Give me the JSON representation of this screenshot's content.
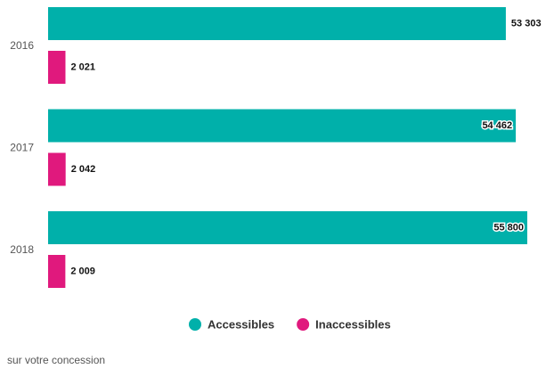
{
  "chart_data": {
    "type": "bar",
    "orientation": "horizontal",
    "categories": [
      "2016",
      "2017",
      "2018"
    ],
    "series": [
      {
        "name": "Accessibles",
        "color": "#00b0aa",
        "values": [
          53303,
          54462,
          55800
        ],
        "value_labels": [
          "53 303",
          "54 462",
          "55 800"
        ]
      },
      {
        "name": "Inaccessibles",
        "color": "#e0197d",
        "values": [
          2021,
          2042,
          2009
        ],
        "value_labels": [
          "2 021",
          "2 042",
          "2 009"
        ]
      }
    ],
    "legend": "bottom",
    "note": "sur votre concession"
  }
}
